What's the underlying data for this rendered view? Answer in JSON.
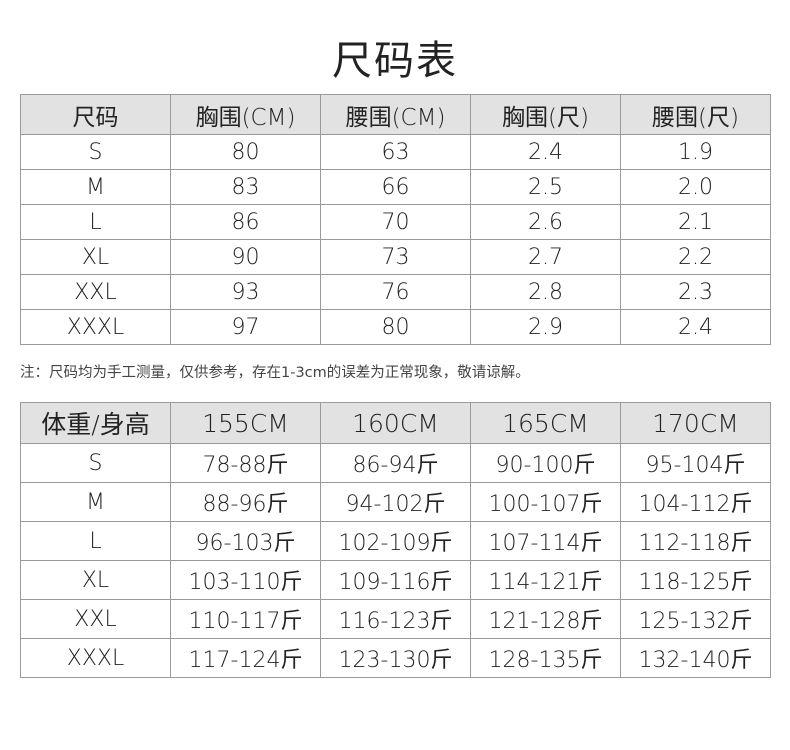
{
  "title": "尺码表",
  "measurements_table": {
    "headers": [
      "尺码",
      "胸围(CM)",
      "腰围(CM)",
      "胸围(尺)",
      "腰围(尺)"
    ],
    "rows": [
      [
        "S",
        "80",
        "63",
        "2.4",
        "1.9"
      ],
      [
        "M",
        "83",
        "66",
        "2.5",
        "2.0"
      ],
      [
        "L",
        "86",
        "70",
        "2.6",
        "2.1"
      ],
      [
        "XL",
        "90",
        "73",
        "2.7",
        "2.2"
      ],
      [
        "XXL",
        "93",
        "76",
        "2.8",
        "2.3"
      ],
      [
        "XXXL",
        "97",
        "80",
        "2.9",
        "2.4"
      ]
    ]
  },
  "note": "注：尺码均为手工测量，仅供参考，存在1-3cm的误差为正常现象，敬请谅解。",
  "weight_height_table": {
    "headers": [
      "体重/身高",
      "155CM",
      "160CM",
      "165CM",
      "170CM"
    ],
    "rows": [
      [
        "S",
        "78-88斤",
        "86-94斤",
        "90-100斤",
        "95-104斤"
      ],
      [
        "M",
        "88-96斤",
        "94-102斤",
        "100-107斤",
        "104-112斤"
      ],
      [
        "L",
        "96-103斤",
        "102-109斤",
        "107-114斤",
        "112-118斤"
      ],
      [
        "XL",
        "103-110斤",
        "109-116斤",
        "114-121斤",
        "118-125斤"
      ],
      [
        "XXL",
        "110-117斤",
        "116-123斤",
        "121-128斤",
        "125-132斤"
      ],
      [
        "XXXL",
        "117-124斤",
        "123-130斤",
        "128-135斤",
        "132-140斤"
      ]
    ]
  },
  "colors": {
    "header_bg": "#e2e2e2",
    "border": "#9a9a9a",
    "text": "#222222"
  }
}
